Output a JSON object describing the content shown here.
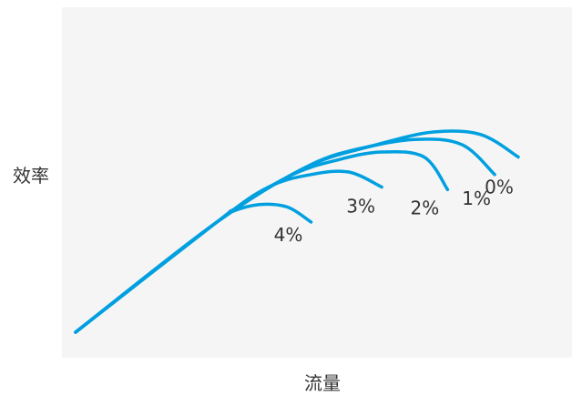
{
  "chart_data": {
    "type": "line",
    "title": "",
    "xlabel": "流量",
    "ylabel": "效率",
    "grid": false,
    "legend": "none",
    "colors": {
      "line": "#00a0e0",
      "plot_background": "#f5f5f5"
    },
    "xlim": [
      0,
      100
    ],
    "ylim": [
      0,
      100
    ],
    "series": [
      {
        "label": "4%",
        "x": [
          0,
          30,
          33,
          39,
          45,
          50
        ],
        "y": [
          0,
          44,
          48,
          51,
          50,
          44
        ]
      },
      {
        "label": "3%",
        "x": [
          0,
          30,
          41,
          50,
          58,
          65
        ],
        "y": [
          0,
          44,
          58,
          63,
          64,
          58
        ]
      },
      {
        "label": "2%",
        "x": [
          0,
          30,
          45,
          56,
          65,
          74,
          79
        ],
        "y": [
          0,
          44,
          62,
          69,
          72,
          70,
          57
        ]
      },
      {
        "label": "1%",
        "x": [
          0,
          30,
          48,
          60,
          72,
          82,
          89
        ],
        "y": [
          0,
          44,
          65,
          73,
          77,
          75,
          63
        ]
      },
      {
        "label": "0%",
        "x": [
          0,
          30,
          50,
          64,
          76,
          86,
          94
        ],
        "y": [
          0,
          44,
          67,
          75,
          80,
          79,
          70
        ]
      }
    ]
  }
}
